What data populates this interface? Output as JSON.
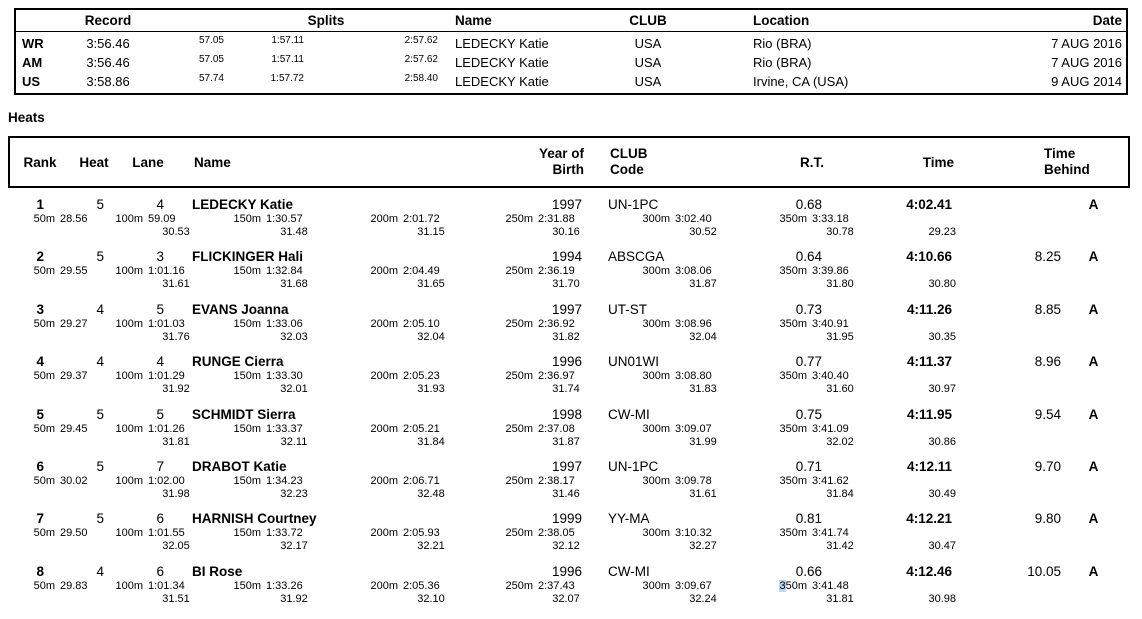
{
  "records": {
    "headers": {
      "record": "Record",
      "splits": "Splits",
      "name": "Name",
      "club": "CLUB",
      "location": "Location",
      "date": "Date"
    },
    "rows": [
      {
        "tag": "WR",
        "time": "3:56.46",
        "splits": [
          "57.05",
          "1:57.11",
          "2:57.62"
        ],
        "name": "LEDECKY Katie",
        "club": "USA",
        "location": "Rio (BRA)",
        "date": "7 AUG 2016"
      },
      {
        "tag": "AM",
        "time": "3:56.46",
        "splits": [
          "57.05",
          "1:57.11",
          "2:57.62"
        ],
        "name": "LEDECKY Katie",
        "club": "USA",
        "location": "Rio (BRA)",
        "date": "7 AUG 2016"
      },
      {
        "tag": "US",
        "time": "3:58.86",
        "splits": [
          "57.74",
          "1:57.72",
          "2:58.40"
        ],
        "name": "LEDECKY Katie",
        "club": "USA",
        "location": "Irvine, CA (USA)",
        "date": "9 AUG 2014"
      }
    ]
  },
  "heats": {
    "section_title": "Heats",
    "headers": {
      "rank": "Rank",
      "heat": "Heat",
      "lane": "Lane",
      "name": "Name",
      "yob_line1": "Year of",
      "yob_line2": "Birth",
      "club_line1": "CLUB",
      "club_line2": "Code",
      "rt": "R.T.",
      "time": "Time",
      "behind_line1": "Time",
      "behind_line2": "Behind"
    },
    "highlight_color": "#b9d6ea",
    "rows": [
      {
        "rank": "1",
        "heat": "5",
        "lane": "4",
        "name": "LEDECKY Katie",
        "yob": "1997",
        "club": "UN-1PC",
        "rt": "0.68",
        "time": "4:02.41",
        "behind": "",
        "status": "A",
        "splits": [
          {
            "label": "50m",
            "cum": "28.56"
          },
          {
            "label": "100m",
            "cum": "59.09",
            "diff": "30.53"
          },
          {
            "label": "150m",
            "cum": "1:30.57",
            "diff": "31.48"
          },
          {
            "label": "200m",
            "cum": "2:01.72",
            "diff": "31.15"
          },
          {
            "label": "250m",
            "cum": "2:31.88",
            "diff": "30.16"
          },
          {
            "label": "300m",
            "cum": "3:02.40",
            "diff": "30.52"
          },
          {
            "label": "350m",
            "cum": "3:33.18",
            "diff": "30.78"
          }
        ],
        "final_diff": "29.23"
      },
      {
        "rank": "2",
        "heat": "5",
        "lane": "3",
        "name": "FLICKINGER Hali",
        "yob": "1994",
        "club": "ABSCGA",
        "rt": "0.64",
        "time": "4:10.66",
        "behind": "8.25",
        "status": "A",
        "splits": [
          {
            "label": "50m",
            "cum": "29.55"
          },
          {
            "label": "100m",
            "cum": "1:01.16",
            "diff": "31.61"
          },
          {
            "label": "150m",
            "cum": "1:32.84",
            "diff": "31.68"
          },
          {
            "label": "200m",
            "cum": "2:04.49",
            "diff": "31.65"
          },
          {
            "label": "250m",
            "cum": "2:36.19",
            "diff": "31.70"
          },
          {
            "label": "300m",
            "cum": "3:08.06",
            "diff": "31.87"
          },
          {
            "label": "350m",
            "cum": "3:39.86",
            "diff": "31.80"
          }
        ],
        "final_diff": "30.80"
      },
      {
        "rank": "3",
        "heat": "4",
        "lane": "5",
        "name": "EVANS Joanna",
        "yob": "1997",
        "club": "UT-ST",
        "rt": "0.73",
        "time": "4:11.26",
        "behind": "8.85",
        "status": "A",
        "splits": [
          {
            "label": "50m",
            "cum": "29.27"
          },
          {
            "label": "100m",
            "cum": "1:01.03",
            "diff": "31.76"
          },
          {
            "label": "150m",
            "cum": "1:33.06",
            "diff": "32.03"
          },
          {
            "label": "200m",
            "cum": "2:05.10",
            "diff": "32.04"
          },
          {
            "label": "250m",
            "cum": "2:36.92",
            "diff": "31.82"
          },
          {
            "label": "300m",
            "cum": "3:08.96",
            "diff": "32.04"
          },
          {
            "label": "350m",
            "cum": "3:40.91",
            "diff": "31.95"
          }
        ],
        "final_diff": "30.35"
      },
      {
        "rank": "4",
        "heat": "4",
        "lane": "4",
        "name": "RUNGE Cierra",
        "yob": "1996",
        "club": "UN01WI",
        "rt": "0.77",
        "time": "4:11.37",
        "behind": "8.96",
        "status": "A",
        "splits": [
          {
            "label": "50m",
            "cum": "29.37"
          },
          {
            "label": "100m",
            "cum": "1:01.29",
            "diff": "31.92"
          },
          {
            "label": "150m",
            "cum": "1:33.30",
            "diff": "32.01"
          },
          {
            "label": "200m",
            "cum": "2:05.23",
            "diff": "31.93"
          },
          {
            "label": "250m",
            "cum": "2:36.97",
            "diff": "31.74"
          },
          {
            "label": "300m",
            "cum": "3:08.80",
            "diff": "31.83"
          },
          {
            "label": "350m",
            "cum": "3:40.40",
            "diff": "31.60"
          }
        ],
        "final_diff": "30.97"
      },
      {
        "rank": "5",
        "heat": "5",
        "lane": "5",
        "name": "SCHMIDT Sierra",
        "yob": "1998",
        "club": "CW-MI",
        "rt": "0.75",
        "time": "4:11.95",
        "behind": "9.54",
        "status": "A",
        "splits": [
          {
            "label": "50m",
            "cum": "29.45"
          },
          {
            "label": "100m",
            "cum": "1:01.26",
            "diff": "31.81"
          },
          {
            "label": "150m",
            "cum": "1:33.37",
            "diff": "32.11"
          },
          {
            "label": "200m",
            "cum": "2:05.21",
            "diff": "31.84"
          },
          {
            "label": "250m",
            "cum": "2:37.08",
            "diff": "31.87"
          },
          {
            "label": "300m",
            "cum": "3:09.07",
            "diff": "31.99"
          },
          {
            "label": "350m",
            "cum": "3:41.09",
            "diff": "32.02"
          }
        ],
        "final_diff": "30.86"
      },
      {
        "rank": "6",
        "heat": "5",
        "lane": "7",
        "name": "DRABOT Katie",
        "yob": "1997",
        "club": "UN-1PC",
        "rt": "0.71",
        "time": "4:12.11",
        "behind": "9.70",
        "status": "A",
        "splits": [
          {
            "label": "50m",
            "cum": "30.02"
          },
          {
            "label": "100m",
            "cum": "1:02.00",
            "diff": "31.98"
          },
          {
            "label": "150m",
            "cum": "1:34.23",
            "diff": "32.23"
          },
          {
            "label": "200m",
            "cum": "2:06.71",
            "diff": "32.48"
          },
          {
            "label": "250m",
            "cum": "2:38.17",
            "diff": "31.46"
          },
          {
            "label": "300m",
            "cum": "3:09.78",
            "diff": "31.61"
          },
          {
            "label": "350m",
            "cum": "3:41.62",
            "diff": "31.84"
          }
        ],
        "final_diff": "30.49"
      },
      {
        "rank": "7",
        "heat": "5",
        "lane": "6",
        "name": "HARNISH Courtney",
        "yob": "1999",
        "club": "YY-MA",
        "rt": "0.81",
        "time": "4:12.21",
        "behind": "9.80",
        "status": "A",
        "splits": [
          {
            "label": "50m",
            "cum": "29.50"
          },
          {
            "label": "100m",
            "cum": "1:01.55",
            "diff": "32.05"
          },
          {
            "label": "150m",
            "cum": "1:33.72",
            "diff": "32.17"
          },
          {
            "label": "200m",
            "cum": "2:05.93",
            "diff": "32.21"
          },
          {
            "label": "250m",
            "cum": "2:38.05",
            "diff": "32.12"
          },
          {
            "label": "300m",
            "cum": "3:10.32",
            "diff": "32.27"
          },
          {
            "label": "350m",
            "cum": "3:41.74",
            "diff": "31.42"
          }
        ],
        "final_diff": "30.47"
      },
      {
        "rank": "8",
        "heat": "4",
        "lane": "6",
        "name": "BI Rose",
        "yob": "1996",
        "club": "CW-MI",
        "rt": "0.66",
        "time": "4:12.46",
        "behind": "10.05",
        "status": "A",
        "splits": [
          {
            "label": "50m",
            "cum": "29.83"
          },
          {
            "label": "100m",
            "cum": "1:01.34",
            "diff": "31.51"
          },
          {
            "label": "150m",
            "cum": "1:33.26",
            "diff": "31.92"
          },
          {
            "label": "200m",
            "cum": "2:05.36",
            "diff": "32.10"
          },
          {
            "label": "250m",
            "cum": "2:37.43",
            "diff": "32.07"
          },
          {
            "label": "300m",
            "cum": "3:09.67",
            "diff": "32.24"
          },
          {
            "label": "350m",
            "cum": "3:41.48",
            "diff": "31.81",
            "hl": true
          }
        ],
        "final_diff": "30.98"
      }
    ]
  }
}
